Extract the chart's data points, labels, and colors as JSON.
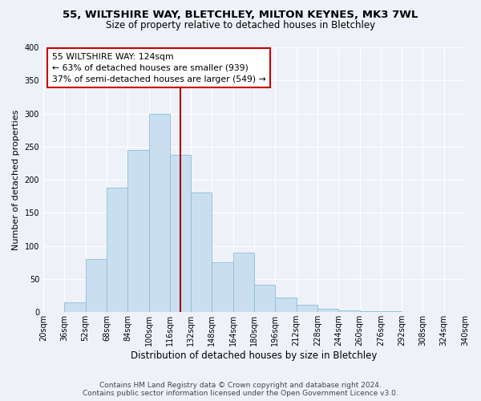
{
  "title": "55, WILTSHIRE WAY, BLETCHLEY, MILTON KEYNES, MK3 7WL",
  "subtitle": "Size of property relative to detached houses in Bletchley",
  "xlabel": "Distribution of detached houses by size in Bletchley",
  "ylabel": "Number of detached properties",
  "bin_edges": [
    20,
    36,
    52,
    68,
    84,
    100,
    116,
    132,
    148,
    164,
    180,
    196,
    212,
    228,
    244,
    260,
    276,
    292,
    308,
    324,
    340
  ],
  "bar_heights": [
    0,
    15,
    80,
    188,
    245,
    300,
    238,
    181,
    75,
    90,
    42,
    22,
    11,
    5,
    3,
    2,
    1,
    0,
    0,
    0
  ],
  "bar_color": "#c9dff0",
  "bar_edge_color": "#8bbdda",
  "vline_x": 124,
  "vline_color": "#aa0000",
  "annotation_title": "55 WILTSHIRE WAY: 124sqm",
  "annotation_line1": "← 63% of detached houses are smaller (939)",
  "annotation_line2": "37% of semi-detached houses are larger (549) →",
  "annotation_box_color": "#ffffff",
  "annotation_box_edge": "#cc0000",
  "ylim": [
    0,
    400
  ],
  "yticks": [
    0,
    50,
    100,
    150,
    200,
    250,
    300,
    350,
    400
  ],
  "footer_line1": "Contains HM Land Registry data © Crown copyright and database right 2024.",
  "footer_line2": "Contains public sector information licensed under the Open Government Licence v3.0.",
  "background_color": "#eef2f8",
  "grid_color": "#ffffff",
  "title_fontsize": 9.5,
  "subtitle_fontsize": 8.5,
  "ylabel_fontsize": 8,
  "xlabel_fontsize": 8.5,
  "tick_fontsize": 7,
  "footer_fontsize": 6.5,
  "ann_fontsize": 7.8
}
